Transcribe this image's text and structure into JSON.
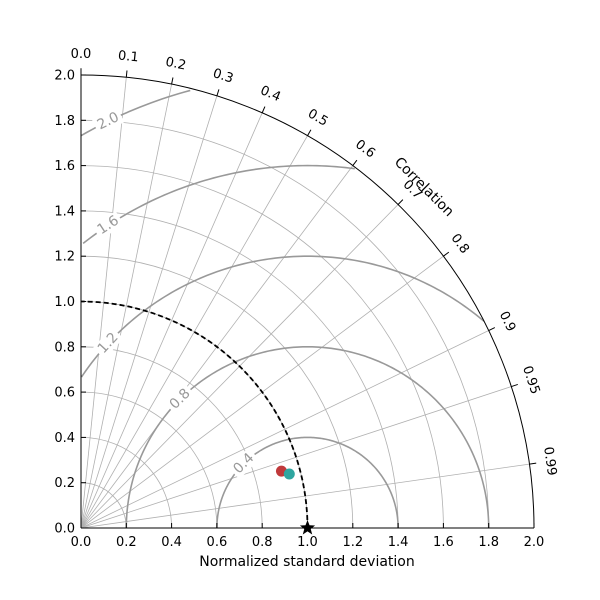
{
  "chart_data": {
    "type": "scatter",
    "subtype": "taylor-diagram",
    "xlabel": "Normalized standard deviation",
    "angular_label": "Correlation",
    "std_range": [
      0.0,
      2.0
    ],
    "std_ticks": [
      "0.0",
      "0.2",
      "0.4",
      "0.6",
      "0.8",
      "1.0",
      "1.2",
      "1.4",
      "1.6",
      "1.8",
      "2.0"
    ],
    "correlation_ticks": [
      "0.0",
      "0.1",
      "0.2",
      "0.3",
      "0.4",
      "0.5",
      "0.6",
      "0.7",
      "0.8",
      "0.9",
      "0.95",
      "0.99"
    ],
    "rms_contours": [
      "0.4",
      "0.8",
      "1.2",
      "1.6",
      "2.0"
    ],
    "reference_std": 1.0,
    "points": [
      {
        "std": 0.92,
        "correlation": 0.962,
        "color": "#c0393b"
      },
      {
        "std": 0.95,
        "correlation": 0.968,
        "color": "#2fa6a0"
      }
    ],
    "grid": true,
    "colors": {
      "contour": "#999999",
      "grid": "#b0b0b0",
      "reference_arc": "#000000"
    }
  }
}
